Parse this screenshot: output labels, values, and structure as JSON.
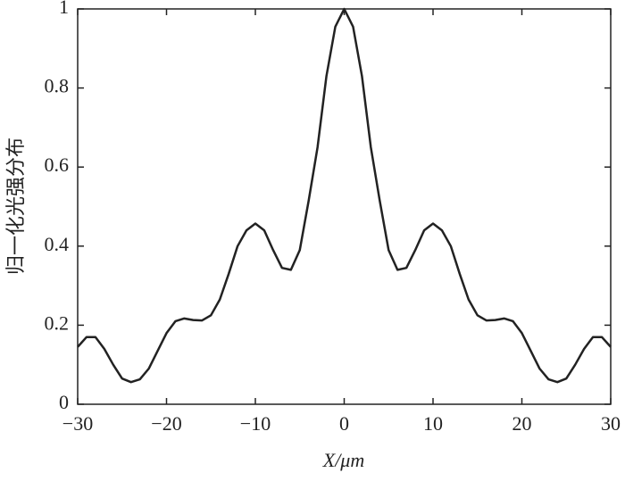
{
  "chart_data": {
    "type": "line",
    "xlabel": "X/μm",
    "ylabel": "归一化光强分布",
    "x": [
      -30,
      -29,
      -28,
      -27,
      -26,
      -25,
      -24,
      -23,
      -22,
      -21,
      -20,
      -19,
      -18,
      -17,
      -16,
      -15,
      -14,
      -13,
      -12,
      -11,
      -10,
      -9,
      -8,
      -7,
      -6,
      -5,
      -4,
      -3,
      -2,
      -1,
      0,
      1,
      2,
      3,
      4,
      5,
      6,
      7,
      8,
      9,
      10,
      11,
      12,
      13,
      14,
      15,
      16,
      17,
      18,
      19,
      20,
      21,
      22,
      23,
      24,
      25,
      26,
      27,
      28,
      29,
      30
    ],
    "series": [
      {
        "name": null,
        "color": "#222222",
        "values": [
          0.145,
          0.17,
          0.17,
          0.14,
          0.1,
          0.065,
          0.056,
          0.063,
          0.09,
          0.135,
          0.18,
          0.21,
          0.217,
          0.213,
          0.212,
          0.225,
          0.265,
          0.33,
          0.4,
          0.44,
          0.457,
          0.44,
          0.39,
          0.345,
          0.34,
          0.39,
          0.515,
          0.65,
          0.83,
          0.955,
          1.0,
          0.955,
          0.83,
          0.65,
          0.515,
          0.39,
          0.34,
          0.345,
          0.39,
          0.44,
          0.457,
          0.44,
          0.4,
          0.33,
          0.265,
          0.225,
          0.212,
          0.213,
          0.217,
          0.21,
          0.18,
          0.135,
          0.09,
          0.063,
          0.056,
          0.065,
          0.1,
          0.14,
          0.17,
          0.17,
          0.145
        ]
      }
    ],
    "xlim": [
      -30,
      30
    ],
    "xticks": [
      {
        "value": -30,
        "label": "−30"
      },
      {
        "value": -20,
        "label": "−20"
      },
      {
        "value": -10,
        "label": "−10"
      },
      0,
      10,
      20,
      30
    ],
    "ylim": [
      0,
      1
    ],
    "yticks": [
      0,
      0.2,
      0.4,
      0.6,
      0.8,
      1
    ],
    "grid": false
  }
}
